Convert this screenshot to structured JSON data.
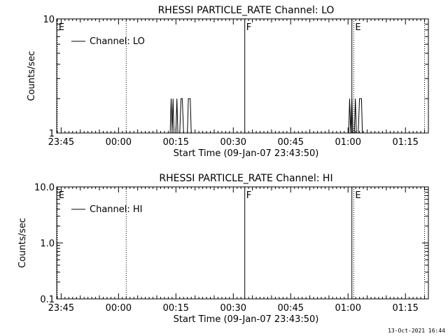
{
  "footer": {
    "stamp": "13-Oct-2021 16:44"
  },
  "chart_data": [
    {
      "type": "line",
      "title": "RHESSI PARTICLE_RATE Channel: LO",
      "xlabel": "Start Time (09-Jan-07 23:43:50)",
      "ylabel": "Counts/sec",
      "y_scale": "log",
      "ylim": [
        1,
        10
      ],
      "y_ticks": [
        "1",
        "10"
      ],
      "x_ticks": [
        "23:45",
        "00:00",
        "00:15",
        "00:30",
        "00:45",
        "01:00",
        "01:15"
      ],
      "grid": false,
      "legend": {
        "placement": "top-left",
        "entries": [
          "Channel: LO"
        ]
      },
      "series": [
        {
          "name": "Channel: LO",
          "points": [
            [
              "00:13:30",
              1
            ],
            [
              "00:13:45",
              2
            ],
            [
              "00:14:00",
              1
            ],
            [
              "00:14:15",
              2
            ],
            [
              "00:14:30",
              1
            ],
            [
              "00:15:00",
              1
            ],
            [
              "00:15:15",
              2
            ],
            [
              "00:15:30",
              1
            ],
            [
              "00:16:00",
              1
            ],
            [
              "00:16:20",
              2
            ],
            [
              "00:16:40",
              2
            ],
            [
              "00:17:00",
              1
            ],
            [
              "00:18:00",
              1
            ],
            [
              "00:18:15",
              2
            ],
            [
              "00:18:45",
              2
            ],
            [
              "00:19:00",
              1
            ],
            [
              "01:00:10",
              1
            ],
            [
              "01:00:25",
              2
            ],
            [
              "01:00:40",
              1
            ],
            [
              "01:01:00",
              2
            ],
            [
              "01:01:15",
              1
            ],
            [
              "01:01:40",
              1
            ],
            [
              "01:01:55",
              2
            ],
            [
              "01:02:10",
              1
            ],
            [
              "01:02:40",
              1
            ],
            [
              "01:03:00",
              2
            ],
            [
              "01:03:30",
              2
            ],
            [
              "01:03:45",
              1
            ]
          ]
        }
      ],
      "annotations": [
        {
          "text": "E",
          "time": "23:44:00",
          "style": "dotted"
        },
        {
          "text": "",
          "time": "00:02:00",
          "style": "dotted"
        },
        {
          "text": "F",
          "time": "00:33:00",
          "style": "solid"
        },
        {
          "text": "",
          "time": "01:01:00",
          "style": "solid"
        },
        {
          "text": "E",
          "time": "01:01:30",
          "style": "dotted"
        },
        {
          "text": "",
          "time": "01:20:00",
          "style": "dotted"
        }
      ]
    },
    {
      "type": "line",
      "title": "RHESSI PARTICLE_RATE Channel: HI",
      "xlabel": "Start Time (09-Jan-07 23:43:50)",
      "ylabel": "Counts/sec",
      "y_scale": "log",
      "ylim": [
        0.1,
        10
      ],
      "y_ticks": [
        "10.0",
        "1.0",
        "0.1"
      ],
      "x_ticks": [
        "23:45",
        "00:00",
        "00:15",
        "00:30",
        "00:45",
        "01:00",
        "01:15"
      ],
      "grid": false,
      "legend": {
        "placement": "top-left",
        "entries": [
          "Channel: HI"
        ]
      },
      "series": [
        {
          "name": "Channel: HI",
          "points": []
        }
      ],
      "annotations": [
        {
          "text": "E",
          "time": "23:44:00",
          "style": "dotted"
        },
        {
          "text": "",
          "time": "00:02:00",
          "style": "dotted"
        },
        {
          "text": "F",
          "time": "00:33:00",
          "style": "solid"
        },
        {
          "text": "",
          "time": "01:01:00",
          "style": "solid"
        },
        {
          "text": "E",
          "time": "01:01:30",
          "style": "dotted"
        },
        {
          "text": "",
          "time": "01:20:00",
          "style": "dotted"
        }
      ]
    }
  ]
}
